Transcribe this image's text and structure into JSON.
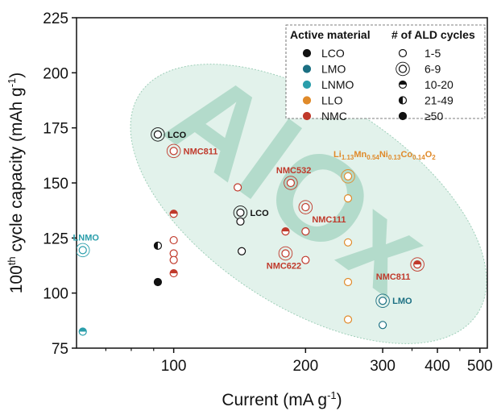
{
  "chart_data": {
    "type": "scatter",
    "xscale": "log",
    "xlabel_main": "Current (mA g",
    "xlabel_sup": "-1",
    "xlabel_close": ")",
    "ylabel_pre": "100",
    "ylabel_sup1": "th",
    "ylabel_mid": " cycle capacity (mAh g",
    "ylabel_sup2": "-1",
    "ylabel_close": ")",
    "xlim": [
      60,
      520
    ],
    "ylim": [
      75,
      225
    ],
    "x_ticks": [
      {
        "value": 100,
        "label": "100"
      },
      {
        "value": 200,
        "label": "200"
      },
      {
        "value": 300,
        "label": "300"
      },
      {
        "value": 400,
        "label": "400"
      },
      {
        "value": 500,
        "label": "500"
      }
    ],
    "x_minor_ticks": [
      70,
      80,
      90,
      350,
      450
    ],
    "y_ticks": [
      {
        "value": 75,
        "label": "75"
      },
      {
        "value": 100,
        "label": "100"
      },
      {
        "value": 125,
        "label": "125"
      },
      {
        "value": 150,
        "label": "150"
      },
      {
        "value": 175,
        "label": "175"
      },
      {
        "value": 200,
        "label": "200"
      },
      {
        "value": 225,
        "label": "225"
      }
    ],
    "watermark": "AlOx",
    "materials": [
      {
        "key": "LCO",
        "label": "LCO",
        "color": "#111111"
      },
      {
        "key": "LMO",
        "label": "LMO",
        "color": "#1b6f82"
      },
      {
        "key": "LNMO",
        "label": "LNMO",
        "color": "#2a9eab"
      },
      {
        "key": "LLO",
        "label": "LLO",
        "color": "#e08a2a"
      },
      {
        "key": "NMC",
        "label": "NMC",
        "color": "#c0392b"
      }
    ],
    "cycles": [
      {
        "label": "1-5",
        "fill": "none"
      },
      {
        "label": "6-9",
        "fill": "none"
      },
      {
        "label": "10-20",
        "fill": "top"
      },
      {
        "label": "21-49",
        "fill": "left"
      },
      {
        "label": "≥50",
        "fill": "full"
      }
    ],
    "legend_headers": [
      "Active material",
      "# of ALD cycles"
    ],
    "legend_position": "top-right",
    "points": [
      {
        "x": 92,
        "y": 172,
        "mat": "LCO",
        "fill": "none",
        "halo": true
      },
      {
        "x": 142,
        "y": 136.5,
        "mat": "LCO",
        "fill": "none",
        "halo": true
      },
      {
        "x": 142,
        "y": 132.5,
        "mat": "LCO",
        "fill": "none",
        "halo": false
      },
      {
        "x": 143,
        "y": 119,
        "mat": "LCO",
        "fill": "none",
        "halo": false
      },
      {
        "x": 92,
        "y": 121.5,
        "mat": "LCO",
        "fill": "left",
        "halo": false
      },
      {
        "x": 92,
        "y": 105,
        "mat": "LCO",
        "fill": "full",
        "halo": false
      },
      {
        "x": 300,
        "y": 96.5,
        "mat": "LMO",
        "fill": "none",
        "halo": true
      },
      {
        "x": 300,
        "y": 85.5,
        "mat": "LMO",
        "fill": "none",
        "halo": false
      },
      {
        "x": 62,
        "y": 119.5,
        "mat": "LNMO",
        "fill": "none",
        "halo": true
      },
      {
        "x": 62,
        "y": 82.5,
        "mat": "LNMO",
        "fill": "top",
        "halo": false
      },
      {
        "x": 250,
        "y": 153,
        "mat": "LLO",
        "fill": "none",
        "halo": true
      },
      {
        "x": 250,
        "y": 143,
        "mat": "LLO",
        "fill": "none",
        "halo": false
      },
      {
        "x": 250,
        "y": 123,
        "mat": "LLO",
        "fill": "none",
        "halo": false
      },
      {
        "x": 250,
        "y": 105,
        "mat": "LLO",
        "fill": "none",
        "halo": false
      },
      {
        "x": 250,
        "y": 88,
        "mat": "LLO",
        "fill": "none",
        "halo": false
      },
      {
        "x": 100,
        "y": 164.5,
        "mat": "NMC",
        "fill": "none",
        "halo": true
      },
      {
        "x": 185,
        "y": 150,
        "mat": "NMC",
        "fill": "none",
        "halo": true
      },
      {
        "x": 200,
        "y": 139,
        "mat": "NMC",
        "fill": "none",
        "halo": true
      },
      {
        "x": 180,
        "y": 118,
        "mat": "NMC",
        "fill": "none",
        "halo": true
      },
      {
        "x": 360,
        "y": 113,
        "mat": "NMC",
        "fill": "top",
        "halo": true
      },
      {
        "x": 140,
        "y": 148,
        "mat": "NMC",
        "fill": "none",
        "halo": false
      },
      {
        "x": 100,
        "y": 136,
        "mat": "NMC",
        "fill": "top",
        "halo": false
      },
      {
        "x": 100,
        "y": 124,
        "mat": "NMC",
        "fill": "none",
        "halo": false
      },
      {
        "x": 100,
        "y": 118,
        "mat": "NMC",
        "fill": "none",
        "halo": false
      },
      {
        "x": 100,
        "y": 115,
        "mat": "NMC",
        "fill": "none",
        "halo": false
      },
      {
        "x": 100,
        "y": 109,
        "mat": "NMC",
        "fill": "top",
        "halo": false
      },
      {
        "x": 180,
        "y": 128,
        "mat": "NMC",
        "fill": "top",
        "halo": false
      },
      {
        "x": 200,
        "y": 128,
        "mat": "NMC",
        "fill": "none",
        "halo": false
      },
      {
        "x": 200,
        "y": 115,
        "mat": "NMC",
        "fill": "none",
        "halo": false
      }
    ],
    "annotations": [
      {
        "text": "LCO",
        "mat": "LCO",
        "x": 92,
        "y": 172,
        "anchor": "right"
      },
      {
        "text": "LCO",
        "mat": "LCO",
        "x": 142,
        "y": 136.5,
        "anchor": "right"
      },
      {
        "text": "NMC811",
        "mat": "NMC",
        "x": 100,
        "y": 164.5,
        "anchor": "right"
      },
      {
        "text": "NMC532",
        "mat": "NMC",
        "x": 185,
        "y": 150,
        "anchor": "above"
      },
      {
        "text": "NMC111",
        "mat": "NMC",
        "x": 200,
        "y": 139,
        "anchor": "below-right"
      },
      {
        "text": "NMC622",
        "mat": "NMC",
        "x": 180,
        "y": 118,
        "anchor": "below-left"
      },
      {
        "text": "NMC811",
        "mat": "NMC",
        "x": 360,
        "y": 113,
        "anchor": "below-left"
      },
      {
        "text": "LNMO",
        "mat": "LNMO",
        "x": 62,
        "y": 119.5,
        "anchor": "above"
      },
      {
        "text": "LMO",
        "mat": "LMO",
        "x": 300,
        "y": 96.5,
        "anchor": "right"
      }
    ],
    "llo_formula": {
      "mat": "LLO",
      "parts": [
        {
          "t": "Li",
          "sub": false
        },
        {
          "t": "1.13",
          "sub": true
        },
        {
          "t": "Mn",
          "sub": false
        },
        {
          "t": "0.54",
          "sub": true
        },
        {
          "t": "Ni",
          "sub": false
        },
        {
          "t": "0.13",
          "sub": true
        },
        {
          "t": "Co",
          "sub": false
        },
        {
          "t": "0.14",
          "sub": true
        },
        {
          "t": "O",
          "sub": false
        },
        {
          "t": "2",
          "sub": true
        }
      ]
    }
  }
}
